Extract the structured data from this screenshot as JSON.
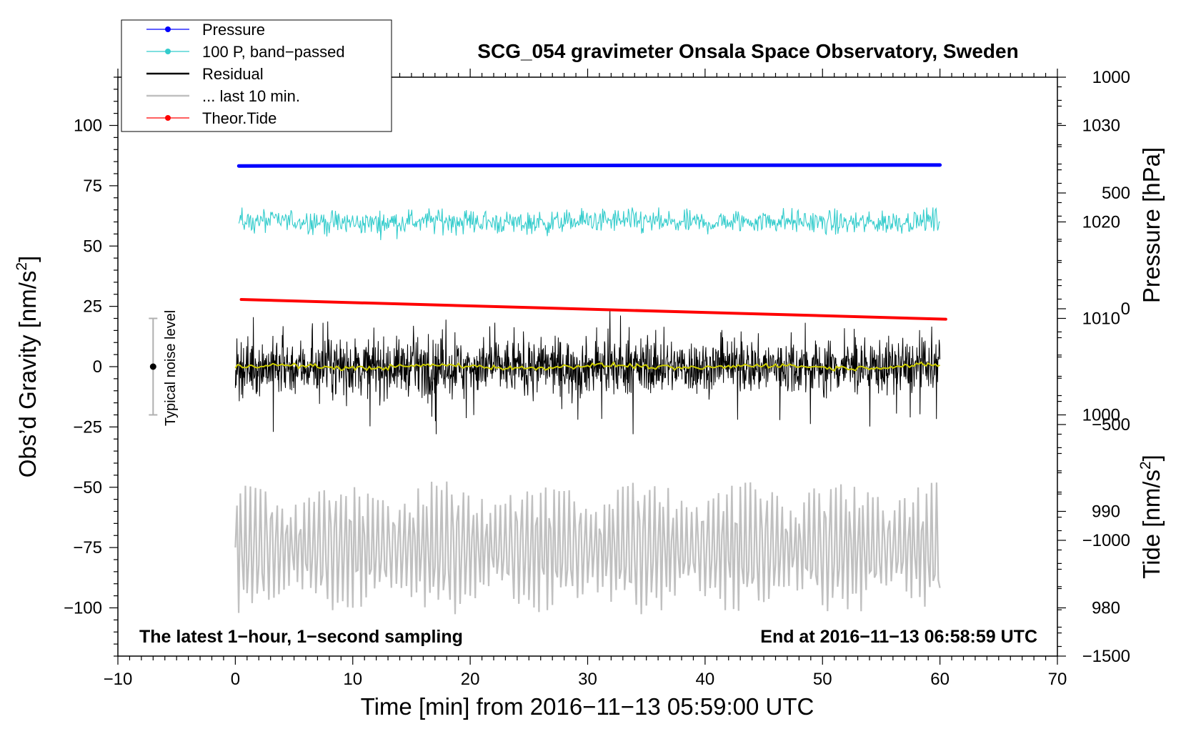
{
  "chart_data": {
    "type": "line",
    "title": "SCG_054 gravimeter Onsala Space Observatory, Sweden",
    "xlabel": "Time [min] from 2016−11−13 05:59:00 UTC",
    "ylabel_left": "Obs’d Gravity [nm/s",
    "ylabel_left_sup": "2",
    "ylabel_left_close": "]",
    "ylabel_right_top": "Pressure [hPa]",
    "ylabel_right_bottom": "Tide [nm/s",
    "ylabel_right_bottom_sup": "2",
    "ylabel_right_bottom_close": "]",
    "xlim": [
      -10,
      70
    ],
    "ylim_left": [
      -120,
      120
    ],
    "pressure_axis_range": [
      975,
      1035
    ],
    "tide_axis_range": [
      -1500,
      1000
    ],
    "x_ticks": [
      {
        "v": -10,
        "label": "−10"
      },
      {
        "v": 0,
        "label": "0"
      },
      {
        "v": 10,
        "label": "10"
      },
      {
        "v": 20,
        "label": "20"
      },
      {
        "v": 30,
        "label": "30"
      },
      {
        "v": 40,
        "label": "40"
      },
      {
        "v": 50,
        "label": "50"
      },
      {
        "v": 60,
        "label": "60"
      },
      {
        "v": 70,
        "label": "70"
      }
    ],
    "y_ticks_left": [
      {
        "v": 100,
        "label": "100"
      },
      {
        "v": 75,
        "label": "75"
      },
      {
        "v": 50,
        "label": "50"
      },
      {
        "v": 25,
        "label": "25"
      },
      {
        "v": 0,
        "label": "0"
      },
      {
        "v": -25,
        "label": "−25"
      },
      {
        "v": -50,
        "label": "−50"
      },
      {
        "v": -75,
        "label": "−75"
      },
      {
        "v": -100,
        "label": "−100"
      }
    ],
    "y_ticks_pressure": [
      {
        "v": 1030,
        "label": "1030"
      },
      {
        "v": 1020,
        "label": "1020"
      },
      {
        "v": 1010,
        "label": "1010"
      },
      {
        "v": 1000,
        "label": "1000"
      },
      {
        "v": 990,
        "label": "990"
      },
      {
        "v": 980,
        "label": "980"
      }
    ],
    "y_ticks_tide": [
      {
        "v": 1000,
        "label": "1000"
      },
      {
        "v": 500,
        "label": "500"
      },
      {
        "v": 0,
        "label": "0"
      },
      {
        "v": -500,
        "label": "−500"
      },
      {
        "v": -1000,
        "label": "−1000"
      },
      {
        "v": -1500,
        "label": "−1500"
      }
    ],
    "series": [
      {
        "name": "Pressure",
        "color": "#0000ff",
        "x": [
          0.3,
          60
        ],
        "values": [
          1025.8,
          1025.9
        ],
        "axis": "pressure"
      },
      {
        "name": "100 P, band−passed",
        "color": "#33cccc",
        "x_range": [
          0.3,
          60
        ],
        "center": 60,
        "amplitude": 7,
        "axis": "left"
      },
      {
        "name": "Residual",
        "color": "#000000",
        "x_range": [
          0,
          60
        ],
        "center": 0,
        "amplitude": 25,
        "axis": "left"
      },
      {
        "name": "... last 10 min.",
        "color": "#c0c0c0",
        "x_range": [
          0,
          60
        ],
        "center": -75,
        "amplitude": 25,
        "axis": "left"
      },
      {
        "name": "Theor.Tide",
        "color": "#ff0000",
        "x": [
          0.5,
          60.5
        ],
        "values": [
          40,
          -45
        ],
        "axis": "tide"
      },
      {
        "name": "Residual smoothed",
        "color": "#cccc00",
        "x_range": [
          0,
          60
        ],
        "center": 0,
        "amplitude": 2,
        "axis": "left"
      }
    ],
    "legend": [
      {
        "label": "Pressure",
        "color": "#0000ff",
        "marker": true
      },
      {
        "label": "100 P, band−passed",
        "color": "#33cccc",
        "marker": true
      },
      {
        "label": "Residual",
        "color": "#000000",
        "marker": false
      },
      {
        "label": "... last 10 min.",
        "color": "#c0c0c0",
        "marker": false
      },
      {
        "label": "Theor.Tide",
        "color": "#ff0000",
        "marker": true
      }
    ],
    "legend_position": "top-left",
    "noise_indicator": {
      "label": "Typical noise level",
      "x": -7,
      "center": 0,
      "low": -20,
      "high": 20
    },
    "annotations": {
      "bottom_left": "The latest 1−hour, 1−second sampling",
      "bottom_right": "End at 2016−11−13 06:58:59 UTC"
    }
  }
}
